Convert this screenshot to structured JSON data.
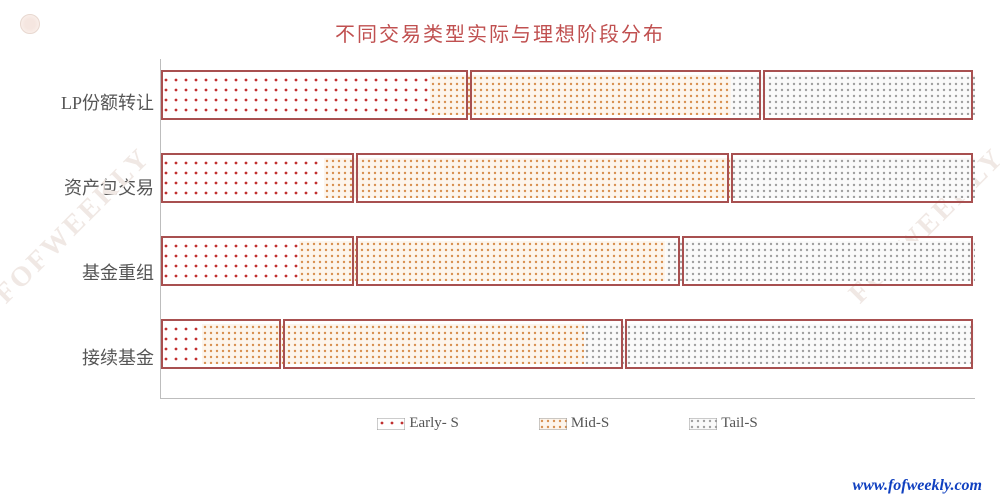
{
  "chart": {
    "title": "不同交易类型实际与理想阶段分布",
    "type": "stacked-horizontal-bar",
    "background_color": "#ffffff",
    "title_color": "#c05050",
    "title_fontsize": 20,
    "axis_color": "#bdbdbd",
    "label_color": "#555555",
    "label_fontsize": 18,
    "overlay_border_color": "#a85050",
    "categories": [
      "接续基金",
      "基金重组",
      "资产包交易",
      "LP份额转让"
    ],
    "series": [
      {
        "name": "Early- S",
        "pattern": "dots-red"
      },
      {
        "name": "Mid-S",
        "pattern": "dots-orange"
      },
      {
        "name": "Tail-S",
        "pattern": "dots-gray"
      }
    ],
    "actual": {
      "接续基金": {
        "early": 5,
        "mid": 47,
        "tail": 48
      },
      "基金重组": {
        "early": 17,
        "mid": 45,
        "tail": 38
      },
      "资产包交易": {
        "early": 20,
        "mid": 50,
        "tail": 30
      },
      "LP份额转让": {
        "early": 33,
        "mid": 37,
        "tail": 30
      }
    },
    "ideal": {
      "接续基金": {
        "early": 15,
        "mid": 42,
        "tail": 43
      },
      "基金重组": {
        "early": 24,
        "mid": 40,
        "tail": 36
      },
      "资产包交易": {
        "early": 24,
        "mid": 46,
        "tail": 30
      },
      "LP份额转让": {
        "early": 38,
        "mid": 36,
        "tail": 26
      }
    },
    "colors": {
      "early_dot": "#c03030",
      "mid_dot": "#d89050",
      "tail_dot": "#a0a0a0",
      "early_bg": "#ffffff",
      "mid_bg": "#faf0e6",
      "tail_bg": "#f5f5f5"
    },
    "legend_labels": {
      "early": "Early- S",
      "mid": "Mid-S",
      "tail": "Tail-S"
    }
  },
  "watermark": {
    "text": "www.fofweekly.com",
    "color": "#1040c0"
  },
  "diag_watermark": "FOFWEEKLY"
}
